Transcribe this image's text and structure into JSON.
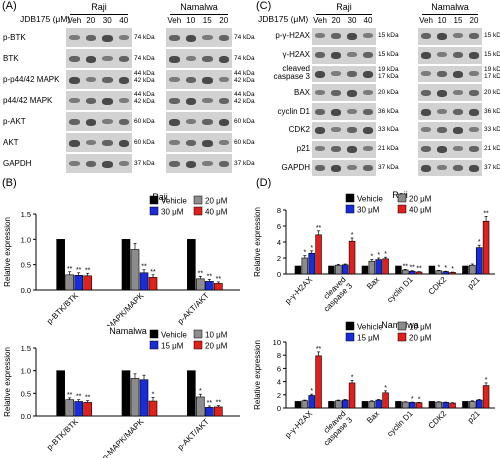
{
  "panelA": {
    "label": "(A)",
    "treatment": "JDB175 (μM)",
    "cell_lines": [
      "Raji",
      "Namalwa"
    ],
    "raji_doses": [
      "Veh",
      "20",
      "30",
      "40"
    ],
    "namalwa_doses": [
      "Veh",
      "10",
      "15",
      "20"
    ],
    "rows": [
      {
        "name": "p-BTK",
        "kda": "74 kDa"
      },
      {
        "name": "BTK",
        "kda": "74 kDa"
      },
      {
        "name": "p-p44/42 MAPK",
        "kda": "44 kDa\n42 kDa"
      },
      {
        "name": "p44/42 MAPK",
        "kda": "44 kDa\n42 kDa"
      },
      {
        "name": "p-AKT",
        "kda": "60 kDa"
      },
      {
        "name": "AKT",
        "kda": "60 kDa"
      },
      {
        "name": "GAPDH",
        "kda": "37 kDa"
      }
    ]
  },
  "panelC": {
    "label": "(C)",
    "treatment": "JDB175 (μM)",
    "cell_lines": [
      "Raji",
      "Namalwa"
    ],
    "raji_doses": [
      "Veh",
      "20",
      "30",
      "40"
    ],
    "namalwa_doses": [
      "Veh",
      "10",
      "15",
      "20"
    ],
    "rows": [
      {
        "name": "p-γ-H2AX",
        "kda": "15 kDa"
      },
      {
        "name": "γ-H2AX",
        "kda": "15 kDa"
      },
      {
        "name": "cleaved\ncaspase 3",
        "kda": "19 kDa\n17 kDa"
      },
      {
        "name": "BAX",
        "kda": "20 kDa"
      },
      {
        "name": "cyclin D1",
        "kda": "36 kDa"
      },
      {
        "name": "CDK2",
        "kda": "33 kDa"
      },
      {
        "name": "p21",
        "kda": "21 kDa"
      },
      {
        "name": "GAPDH",
        "kda": "37 kDa"
      }
    ]
  },
  "panelB": {
    "label": "(B)"
  },
  "panelD": {
    "label": "(D)"
  },
  "colors": {
    "veh": "#000000",
    "low": "#8c8c8c",
    "mid": "#1a2bd9",
    "high": "#e0201b"
  },
  "chart_data": [
    {
      "type": "bar",
      "title": "Raji",
      "ylabel": "Relative expression",
      "ylim": [
        0,
        1.5
      ],
      "yticks": [
        "0.0",
        "0.5",
        "1.0",
        "1.5"
      ],
      "categories": [
        "p-BTK/BTK",
        "p-MAPK/MAPK",
        "p-AKT/AKT"
      ],
      "legend": [
        "Vehicle",
        "20 μM",
        "30 μM",
        "40 μM"
      ],
      "series": [
        {
          "name": "Vehicle",
          "values": [
            1.0,
            1.0,
            1.0
          ]
        },
        {
          "name": "20 μM",
          "values": [
            0.3,
            0.8,
            0.22
          ]
        },
        {
          "name": "30 μM",
          "values": [
            0.29,
            0.34,
            0.17
          ]
        },
        {
          "name": "40 μM",
          "values": [
            0.28,
            0.25,
            0.13
          ]
        }
      ],
      "errors": [
        [
          0,
          0,
          0
        ],
        [
          0.06,
          0.12,
          0.05
        ],
        [
          0.05,
          0.06,
          0.04
        ],
        [
          0.05,
          0.05,
          0.03
        ]
      ],
      "stars": [
        [
          "",
          "",
          ""
        ],
        [
          "**",
          "",
          "**"
        ],
        [
          "**",
          "**",
          "**"
        ],
        [
          "**",
          "**",
          "**"
        ]
      ]
    },
    {
      "type": "bar",
      "title": "Namalwa",
      "ylabel": "Relative expression",
      "ylim": [
        0,
        1.5
      ],
      "yticks": [
        "0.0",
        "0.5",
        "1.0",
        "1.5"
      ],
      "categories": [
        "p-BTK/BTK",
        "p-MAPK/MAPK",
        "p-AKT/AKT"
      ],
      "legend": [
        "Vehicle",
        "10 μM",
        "15 μM",
        "20 μM"
      ],
      "series": [
        {
          "name": "Vehicle",
          "values": [
            1.0,
            1.0,
            1.0
          ]
        },
        {
          "name": "10 μM",
          "values": [
            0.36,
            0.83,
            0.42
          ]
        },
        {
          "name": "15 μM",
          "values": [
            0.32,
            0.8,
            0.19
          ]
        },
        {
          "name": "20 μM",
          "values": [
            0.3,
            0.33,
            0.2
          ]
        }
      ],
      "errors": [
        [
          0,
          0,
          0
        ],
        [
          0.04,
          0.1,
          0.06
        ],
        [
          0.04,
          0.1,
          0.03
        ],
        [
          0.04,
          0.08,
          0.03
        ]
      ],
      "stars": [
        [
          "",
          "",
          ""
        ],
        [
          "**",
          "",
          "*"
        ],
        [
          "**",
          "",
          "**"
        ],
        [
          "**",
          "*",
          "**"
        ]
      ]
    },
    {
      "type": "bar",
      "title": "Raji",
      "ylabel": "Relative expression",
      "ylim": [
        0,
        8
      ],
      "yticks": [
        "0",
        "2",
        "4",
        "6",
        "8"
      ],
      "categories": [
        "p-γ-H2AX",
        "cleaved\ncaspase 3",
        "Bax",
        "cyclin D1",
        "CDK2",
        "p21"
      ],
      "legend": [
        "Vehicle",
        "20 μM",
        "30 μM",
        "40 μM"
      ],
      "series": [
        {
          "name": "Vehicle",
          "values": [
            1.0,
            1.0,
            1.0,
            1.0,
            1.0,
            1.0
          ]
        },
        {
          "name": "20 μM",
          "values": [
            2.0,
            1.1,
            1.6,
            0.5,
            0.4,
            1.1
          ]
        },
        {
          "name": "30 μM",
          "values": [
            2.6,
            1.15,
            1.8,
            0.35,
            0.3,
            3.3
          ]
        },
        {
          "name": "40 μM",
          "values": [
            4.9,
            4.1,
            1.9,
            0.25,
            0.2,
            6.6
          ]
        }
      ],
      "errors": [
        [
          0,
          0,
          0,
          0,
          0,
          0
        ],
        [
          0.3,
          0.1,
          0.2,
          0.08,
          0.05,
          0.15
        ],
        [
          0.3,
          0.1,
          0.2,
          0.06,
          0.05,
          0.3
        ],
        [
          0.5,
          0.4,
          0.2,
          0.05,
          0.04,
          0.6
        ]
      ],
      "stars": [
        [
          "",
          "",
          "",
          "",
          "",
          ""
        ],
        [
          "*",
          "",
          "*",
          "**",
          "*",
          ""
        ],
        [
          "*",
          "",
          "*",
          "**",
          "*",
          "*"
        ],
        [
          "**",
          "*",
          "*",
          "**",
          "*",
          "**"
        ]
      ]
    },
    {
      "type": "bar",
      "title": "Namalwa",
      "ylabel": "Relative expression",
      "ylim": [
        0,
        10
      ],
      "yticks": [
        "0",
        "2",
        "4",
        "6",
        "8",
        "10"
      ],
      "categories": [
        "p-γ-H2AX",
        "cleaved\ncaspase 3",
        "Bax",
        "cyclin D1",
        "CDK2",
        "p21"
      ],
      "legend": [
        "Vehicle",
        "10 μM",
        "15 μM",
        "20 μM"
      ],
      "series": [
        {
          "name": "Vehicle",
          "values": [
            1.0,
            1.0,
            1.0,
            1.0,
            1.0,
            1.0
          ]
        },
        {
          "name": "10 μM",
          "values": [
            1.1,
            1.1,
            1.0,
            0.9,
            0.9,
            1.0
          ]
        },
        {
          "name": "15 μM",
          "values": [
            1.9,
            1.2,
            1.2,
            0.85,
            0.85,
            1.2
          ]
        },
        {
          "name": "20 μM",
          "values": [
            7.9,
            3.8,
            2.3,
            0.8,
            0.75,
            3.4
          ]
        }
      ],
      "errors": [
        [
          0,
          0,
          0,
          0,
          0,
          0
        ],
        [
          0.1,
          0.1,
          0.1,
          0.05,
          0.05,
          0.1
        ],
        [
          0.2,
          0.1,
          0.1,
          0.05,
          0.05,
          0.1
        ],
        [
          0.6,
          0.4,
          0.3,
          0.05,
          0.05,
          0.4
        ]
      ],
      "stars": [
        [
          "",
          "",
          "",
          "",
          "",
          ""
        ],
        [
          "",
          "",
          "",
          "",
          "",
          ""
        ],
        [
          "*",
          "",
          "",
          "*",
          "",
          ""
        ],
        [
          "**",
          "*",
          "*",
          "*",
          "",
          "*"
        ]
      ]
    }
  ]
}
